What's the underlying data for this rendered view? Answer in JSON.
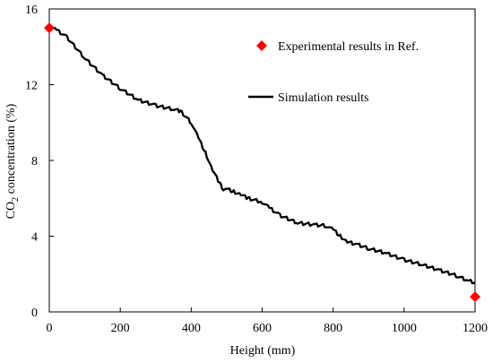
{
  "chart_data": {
    "type": "line",
    "xlabel": "Height (mm)",
    "ylabel": {
      "prefix": "CO",
      "subscript": "2",
      "suffix": " concentration (%)"
    },
    "xlim": [
      0,
      1200
    ],
    "ylim": [
      0,
      16
    ],
    "xticks": [
      0,
      200,
      400,
      600,
      800,
      1000,
      1200
    ],
    "yticks": [
      0,
      4,
      8,
      12,
      16
    ],
    "grid": false,
    "legend_position": "top-right",
    "series": [
      {
        "name": "Experimental results in Ref.",
        "marker": "diamond",
        "color": "#ff0000",
        "x": [
          0,
          1200
        ],
        "y": [
          15.0,
          0.8
        ]
      },
      {
        "name": "Simulation results",
        "marker": "line",
        "color": "#000000",
        "x": [
          0,
          20,
          50,
          100,
          150,
          200,
          250,
          300,
          350,
          370,
          400,
          420,
          440,
          460,
          480,
          490,
          500,
          520,
          540,
          560,
          600,
          620,
          650,
          700,
          750,
          780,
          800,
          820,
          840,
          870,
          900,
          950,
          1000,
          1050,
          1100,
          1150,
          1180,
          1200
        ],
        "y": [
          15.0,
          14.9,
          14.5,
          13.4,
          12.5,
          11.8,
          11.2,
          10.9,
          10.7,
          10.6,
          10.0,
          9.2,
          8.4,
          7.5,
          6.8,
          6.5,
          6.5,
          6.35,
          6.2,
          6.0,
          5.8,
          5.5,
          5.1,
          4.7,
          4.6,
          4.55,
          4.35,
          4.0,
          3.7,
          3.55,
          3.35,
          3.1,
          2.75,
          2.5,
          2.2,
          1.9,
          1.65,
          1.55
        ]
      }
    ]
  }
}
